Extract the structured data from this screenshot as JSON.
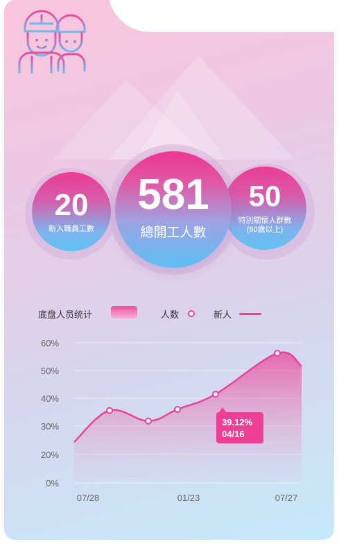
{
  "stats": {
    "new_hires": {
      "value": "20",
      "label": "新入職員工數"
    },
    "total": {
      "value": "581",
      "label": "總開工人數"
    },
    "seniors": {
      "value": "50",
      "label": "特別關懷人群數",
      "sub": "(60歲以上)"
    }
  },
  "legend": {
    "title": "底盘人员统计",
    "people": "人数",
    "new": "新人"
  },
  "tooltip": {
    "percent": "39.12%",
    "date": "04/16"
  },
  "colors": {
    "accent": "#e8439a",
    "tooltip_bg": "#ed3f94"
  },
  "chart_data": {
    "type": "area",
    "y_ticks": [
      "60%",
      "50%",
      "40%",
      "30%",
      "20%",
      "0%"
    ],
    "x_ticks": [
      "07/28",
      "01/23",
      "07/27"
    ],
    "series": [
      {
        "values": [
          17.5,
          31,
          26.5,
          31.5,
          38,
          55.5,
          50
        ],
        "markers": [
          false,
          true,
          true,
          true,
          true,
          true,
          false
        ]
      }
    ],
    "grid": true
  }
}
